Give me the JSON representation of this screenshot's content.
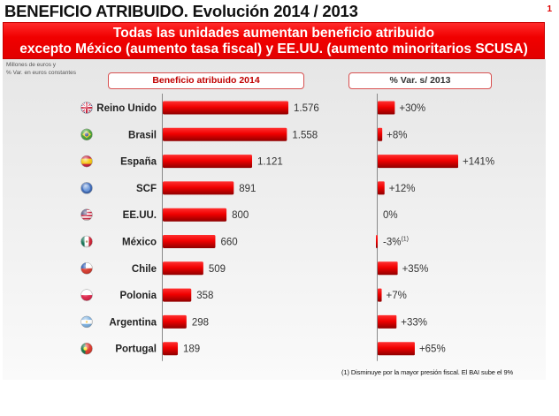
{
  "header": {
    "title": "BENEFICIO ATRIBUIDO. Evolución 2014 / 2013",
    "page_number": "1"
  },
  "banner": {
    "line1": "Todas las unidades aumentan beneficio atribuido",
    "line2": "excepto México (aumento tasa fiscal) y EE.UU. (aumento minoritarios SCUSA)"
  },
  "note": {
    "line1": "Millones de euros y",
    "line2": "% Var. en euros constantes"
  },
  "column_headers": {
    "left": "Beneficio atribuido 2014",
    "right": "% Var. s/ 2013"
  },
  "footnote": "(1) Disminuye por la mayor presión fiscal. El BAI sube el 9%",
  "colors": {
    "bar": "#ee0000",
    "bar_dark": "#9a0000",
    "banner": "#f10000",
    "accent_text": "#c00000"
  },
  "chart_data": [
    {
      "type": "bar",
      "orientation": "horizontal",
      "title": "Beneficio atribuido 2014",
      "unit": "Millones de euros",
      "categories": [
        "Reino  Unido",
        "Brasil",
        "España",
        "SCF",
        "EE.UU.",
        "México",
        "Chile",
        "Polonia",
        "Argentina",
        "Portugal"
      ],
      "flags": [
        "uk-flag",
        "brazil-flag",
        "spain-flag",
        "scf-globe",
        "usa-flag",
        "mexico-flag",
        "chile-flag",
        "poland-flag",
        "argentina-flag",
        "portugal-flag"
      ],
      "values": [
        1576,
        1558,
        1121,
        891,
        800,
        660,
        509,
        358,
        298,
        189
      ],
      "labels": [
        "1.576",
        "1.558",
        "1.121",
        "891",
        "800",
        "660",
        "509",
        "358",
        "298",
        "189"
      ],
      "xlim": [
        0,
        1576
      ]
    },
    {
      "type": "bar",
      "orientation": "horizontal",
      "title": "% Var. s/ 2013",
      "unit": "% Var. en euros constantes",
      "categories": [
        "Reino  Unido",
        "Brasil",
        "España",
        "SCF",
        "EE.UU.",
        "México",
        "Chile",
        "Polonia",
        "Argentina",
        "Portugal"
      ],
      "values": [
        30,
        8,
        141,
        12,
        0,
        -3,
        35,
        7,
        33,
        65
      ],
      "labels": [
        "+30%",
        "+8%",
        "+141%",
        "+12%",
        "0%",
        "-3%",
        "+35%",
        "+7%",
        "+33%",
        "+65%"
      ],
      "label_superscripts": [
        "",
        "",
        "",
        "",
        "",
        "(1)",
        "",
        "",
        "",
        ""
      ],
      "xlim": [
        -3,
        141
      ]
    }
  ]
}
